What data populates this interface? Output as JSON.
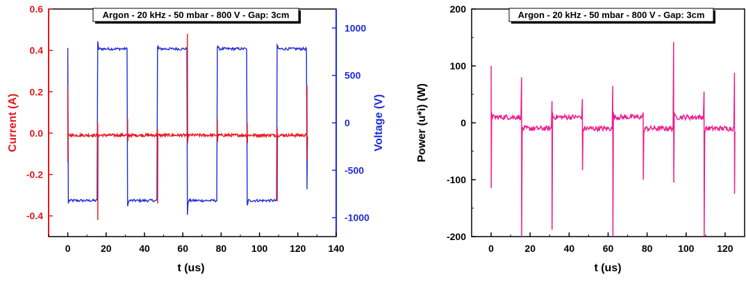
{
  "chart_data": [
    {
      "type": "line",
      "title": "Argon - 20 kHz - 50 mbar - 800 V - Gap: 3cm",
      "xlabel": "t (us)",
      "xlim": [
        -10,
        140
      ],
      "xticks": [
        0,
        20,
        40,
        60,
        80,
        100,
        120,
        140
      ],
      "y_left": {
        "label": "Current (A)",
        "lim": [
          -0.5,
          0.6
        ],
        "ticks": [
          "-0.4",
          "-0.2",
          "0.0",
          "0.2",
          "0.4",
          "0.6"
        ],
        "color": "#e8141b"
      },
      "y_right": {
        "label": "Voltage (V)",
        "lim": [
          -1200,
          1200
        ],
        "ticks": [
          "-1000",
          "-500",
          "0",
          "500",
          "1000"
        ],
        "color": "#1b2bd6"
      },
      "grid": false,
      "half_period_us": 15.6,
      "series": [
        {
          "axis": "left",
          "color": "#e8141b",
          "baseline": -0.01,
          "transitions": [
            {
              "t": 0,
              "peak": 0.23,
              "trough": -0.14
            },
            {
              "t": 15.6,
              "peak": 0.05,
              "trough": -0.42
            },
            {
              "t": 31.2,
              "peak": 0.07,
              "trough": -0.03
            },
            {
              "t": 46.8,
              "peak": 0.02,
              "trough": -0.34
            },
            {
              "t": 62.4,
              "peak": 0.48,
              "trough": -0.05
            },
            {
              "t": 78.0,
              "peak": 0.07,
              "trough": -0.04
            },
            {
              "t": 93.6,
              "peak": 0.05,
              "trough": -0.05
            },
            {
              "t": 109.2,
              "peak": 0.03,
              "trough": -0.33
            },
            {
              "t": 124.8,
              "peak": 0.23,
              "trough": -0.13
            }
          ]
        },
        {
          "axis": "right",
          "color": "#1b2bd6",
          "t_start": 0,
          "t_end": 125,
          "high": 780,
          "low": -820,
          "spikes": [
            {
              "t": 0,
              "v": 790
            },
            {
              "t": 15.6,
              "v": 860
            },
            {
              "t": 31.2,
              "v": -880
            },
            {
              "t": 46.8,
              "v": 800
            },
            {
              "t": 62.4,
              "v": -970
            },
            {
              "t": 78.0,
              "v": 800
            },
            {
              "t": 93.6,
              "v": -870
            },
            {
              "t": 109.2,
              "v": 820
            },
            {
              "t": 124.8,
              "v": -700
            }
          ]
        }
      ]
    },
    {
      "type": "line",
      "title": "Argon - 20 kHz - 50 mbar - 800 V - Gap: 3cm",
      "xlabel": "t (us)",
      "xlim": [
        -10,
        130
      ],
      "xticks": [
        0,
        20,
        40,
        60,
        80,
        100,
        120
      ],
      "ylabel": "Power (u*i) (W)",
      "ylim": [
        -200,
        200
      ],
      "yticks": [
        "-200",
        "-100",
        "0",
        "100",
        "200"
      ],
      "grid": false,
      "series": [
        {
          "color": "#ee1d8c",
          "segments": [
            {
              "t0": 0,
              "t1": 15.6,
              "level": 10
            },
            {
              "t0": 15.6,
              "t1": 31.2,
              "level": -10
            },
            {
              "t0": 31.2,
              "t1": 46.8,
              "level": 10
            },
            {
              "t0": 46.8,
              "t1": 62.4,
              "level": -10
            },
            {
              "t0": 62.4,
              "t1": 78.0,
              "level": 10
            },
            {
              "t0": 78.0,
              "t1": 93.6,
              "level": -10
            },
            {
              "t0": 93.6,
              "t1": 109.2,
              "level": 10
            },
            {
              "t0": 109.2,
              "t1": 124.8,
              "level": -10
            }
          ],
          "spikes": [
            {
              "t": 0,
              "peak": 100,
              "trough": -115
            },
            {
              "t": 15.6,
              "peak": 80,
              "trough": -200
            },
            {
              "t": 31.2,
              "peak": 38,
              "trough": -188
            },
            {
              "t": 46.8,
              "peak": 42,
              "trough": -83
            },
            {
              "t": 62.4,
              "peak": 65,
              "trough": -200
            },
            {
              "t": 78.0,
              "peak": 18,
              "trough": -100
            },
            {
              "t": 93.6,
              "peak": 142,
              "trough": -105
            },
            {
              "t": 109.2,
              "peak": 55,
              "trough": -200
            },
            {
              "t": 124.8,
              "peak": 88,
              "trough": -125
            }
          ]
        }
      ]
    }
  ]
}
